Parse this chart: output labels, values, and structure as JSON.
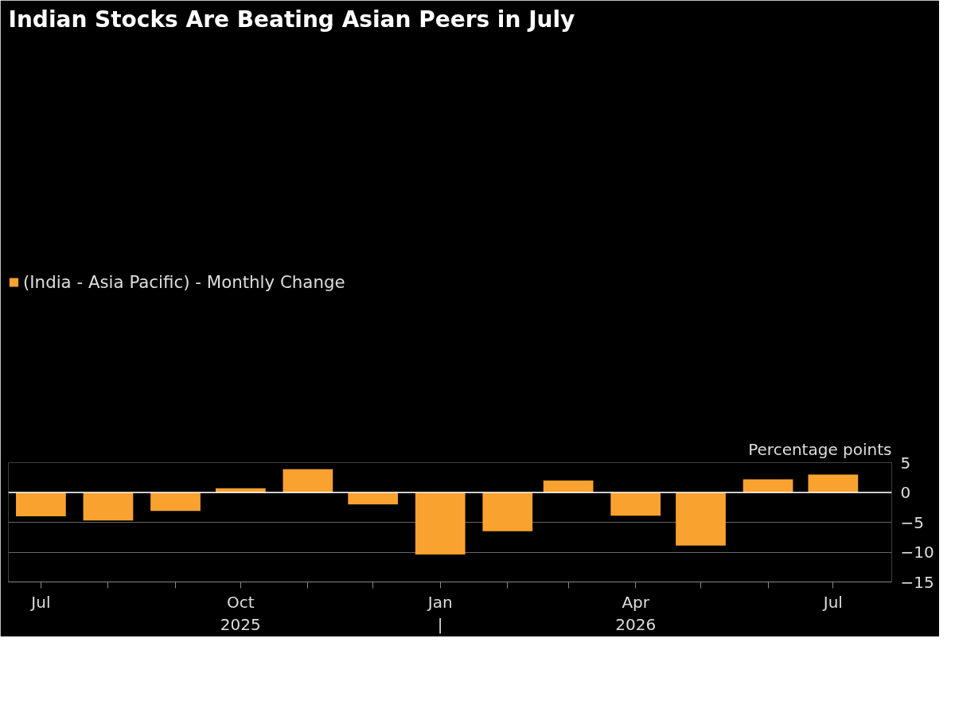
{
  "chart_data": {
    "type": "bar",
    "title": "Indian Stocks Are Beating Asian Peers in July",
    "ylabel": "Percentage points",
    "x": [
      "2025-07",
      "2025-08",
      "2025-09",
      "2025-10",
      "2025-11",
      "2025-12",
      "2026-01",
      "2026-02",
      "2026-03",
      "2026-04",
      "2026-05",
      "2026-06",
      "2026-07"
    ],
    "series": [
      {
        "name": "(India - Asia Pacific) - Monthly Change",
        "color": "#f9a230",
        "values": [
          -4.0,
          -4.7,
          -3.1,
          0.7,
          3.9,
          -2.0,
          -10.4,
          -6.5,
          2.0,
          -3.9,
          -8.9,
          2.2,
          3.0
        ]
      }
    ],
    "xlim": [
      "2025-06-16",
      "2026-07-28"
    ],
    "xticks": [
      {
        "value": "2025-07",
        "label": "Jul"
      },
      {
        "value": "2025-08",
        "label": null
      },
      {
        "value": "2025-09",
        "label": null
      },
      {
        "value": "2025-10",
        "label": "Oct\n2025"
      },
      {
        "value": "2025-11",
        "label": null
      },
      {
        "value": "2025-12",
        "label": null
      },
      {
        "value": "2026-01",
        "label": "Jan\n|"
      },
      {
        "value": "2026-02",
        "label": null
      },
      {
        "value": "2026-03",
        "label": null
      },
      {
        "value": "2026-04",
        "label": "Apr\n2026"
      },
      {
        "value": "2026-05",
        "label": null
      },
      {
        "value": "2026-06",
        "label": null
      },
      {
        "value": "2026-07",
        "label": "Jul"
      }
    ],
    "ylim": [
      -15,
      5
    ],
    "yticks": [
      -15,
      -10,
      -5,
      0,
      5
    ],
    "ref_lines": [
      {
        "axis": "y",
        "value": 0,
        "color": "#ffffff"
      }
    ],
    "grid": "y",
    "legend": "top"
  }
}
